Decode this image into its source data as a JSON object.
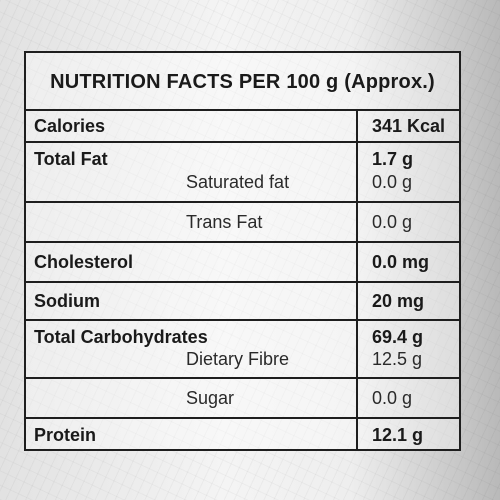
{
  "title": "NUTRITION FACTS PER 100 g (Approx.)",
  "rows": {
    "calories": {
      "label": "Calories",
      "value": "341 Kcal"
    },
    "total_fat": {
      "label": "Total Fat",
      "value": "1.7 g"
    },
    "saturated_fat": {
      "label": "Saturated fat",
      "value": "0.0 g"
    },
    "trans_fat": {
      "label": "Trans Fat",
      "value": "0.0 g"
    },
    "cholesterol": {
      "label": "Cholesterol",
      "value": "0.0 mg"
    },
    "sodium": {
      "label": "Sodium",
      "value": "20 mg"
    },
    "total_carbohydrates": {
      "label": "Total Carbohydrates",
      "value": "69.4 g"
    },
    "dietary_fibre": {
      "label": "Dietary Fibre",
      "value": "12.5 g"
    },
    "sugar": {
      "label": "Sugar",
      "value": "0.0 g"
    },
    "protein": {
      "label": "Protein",
      "value": "12.1 g"
    }
  }
}
